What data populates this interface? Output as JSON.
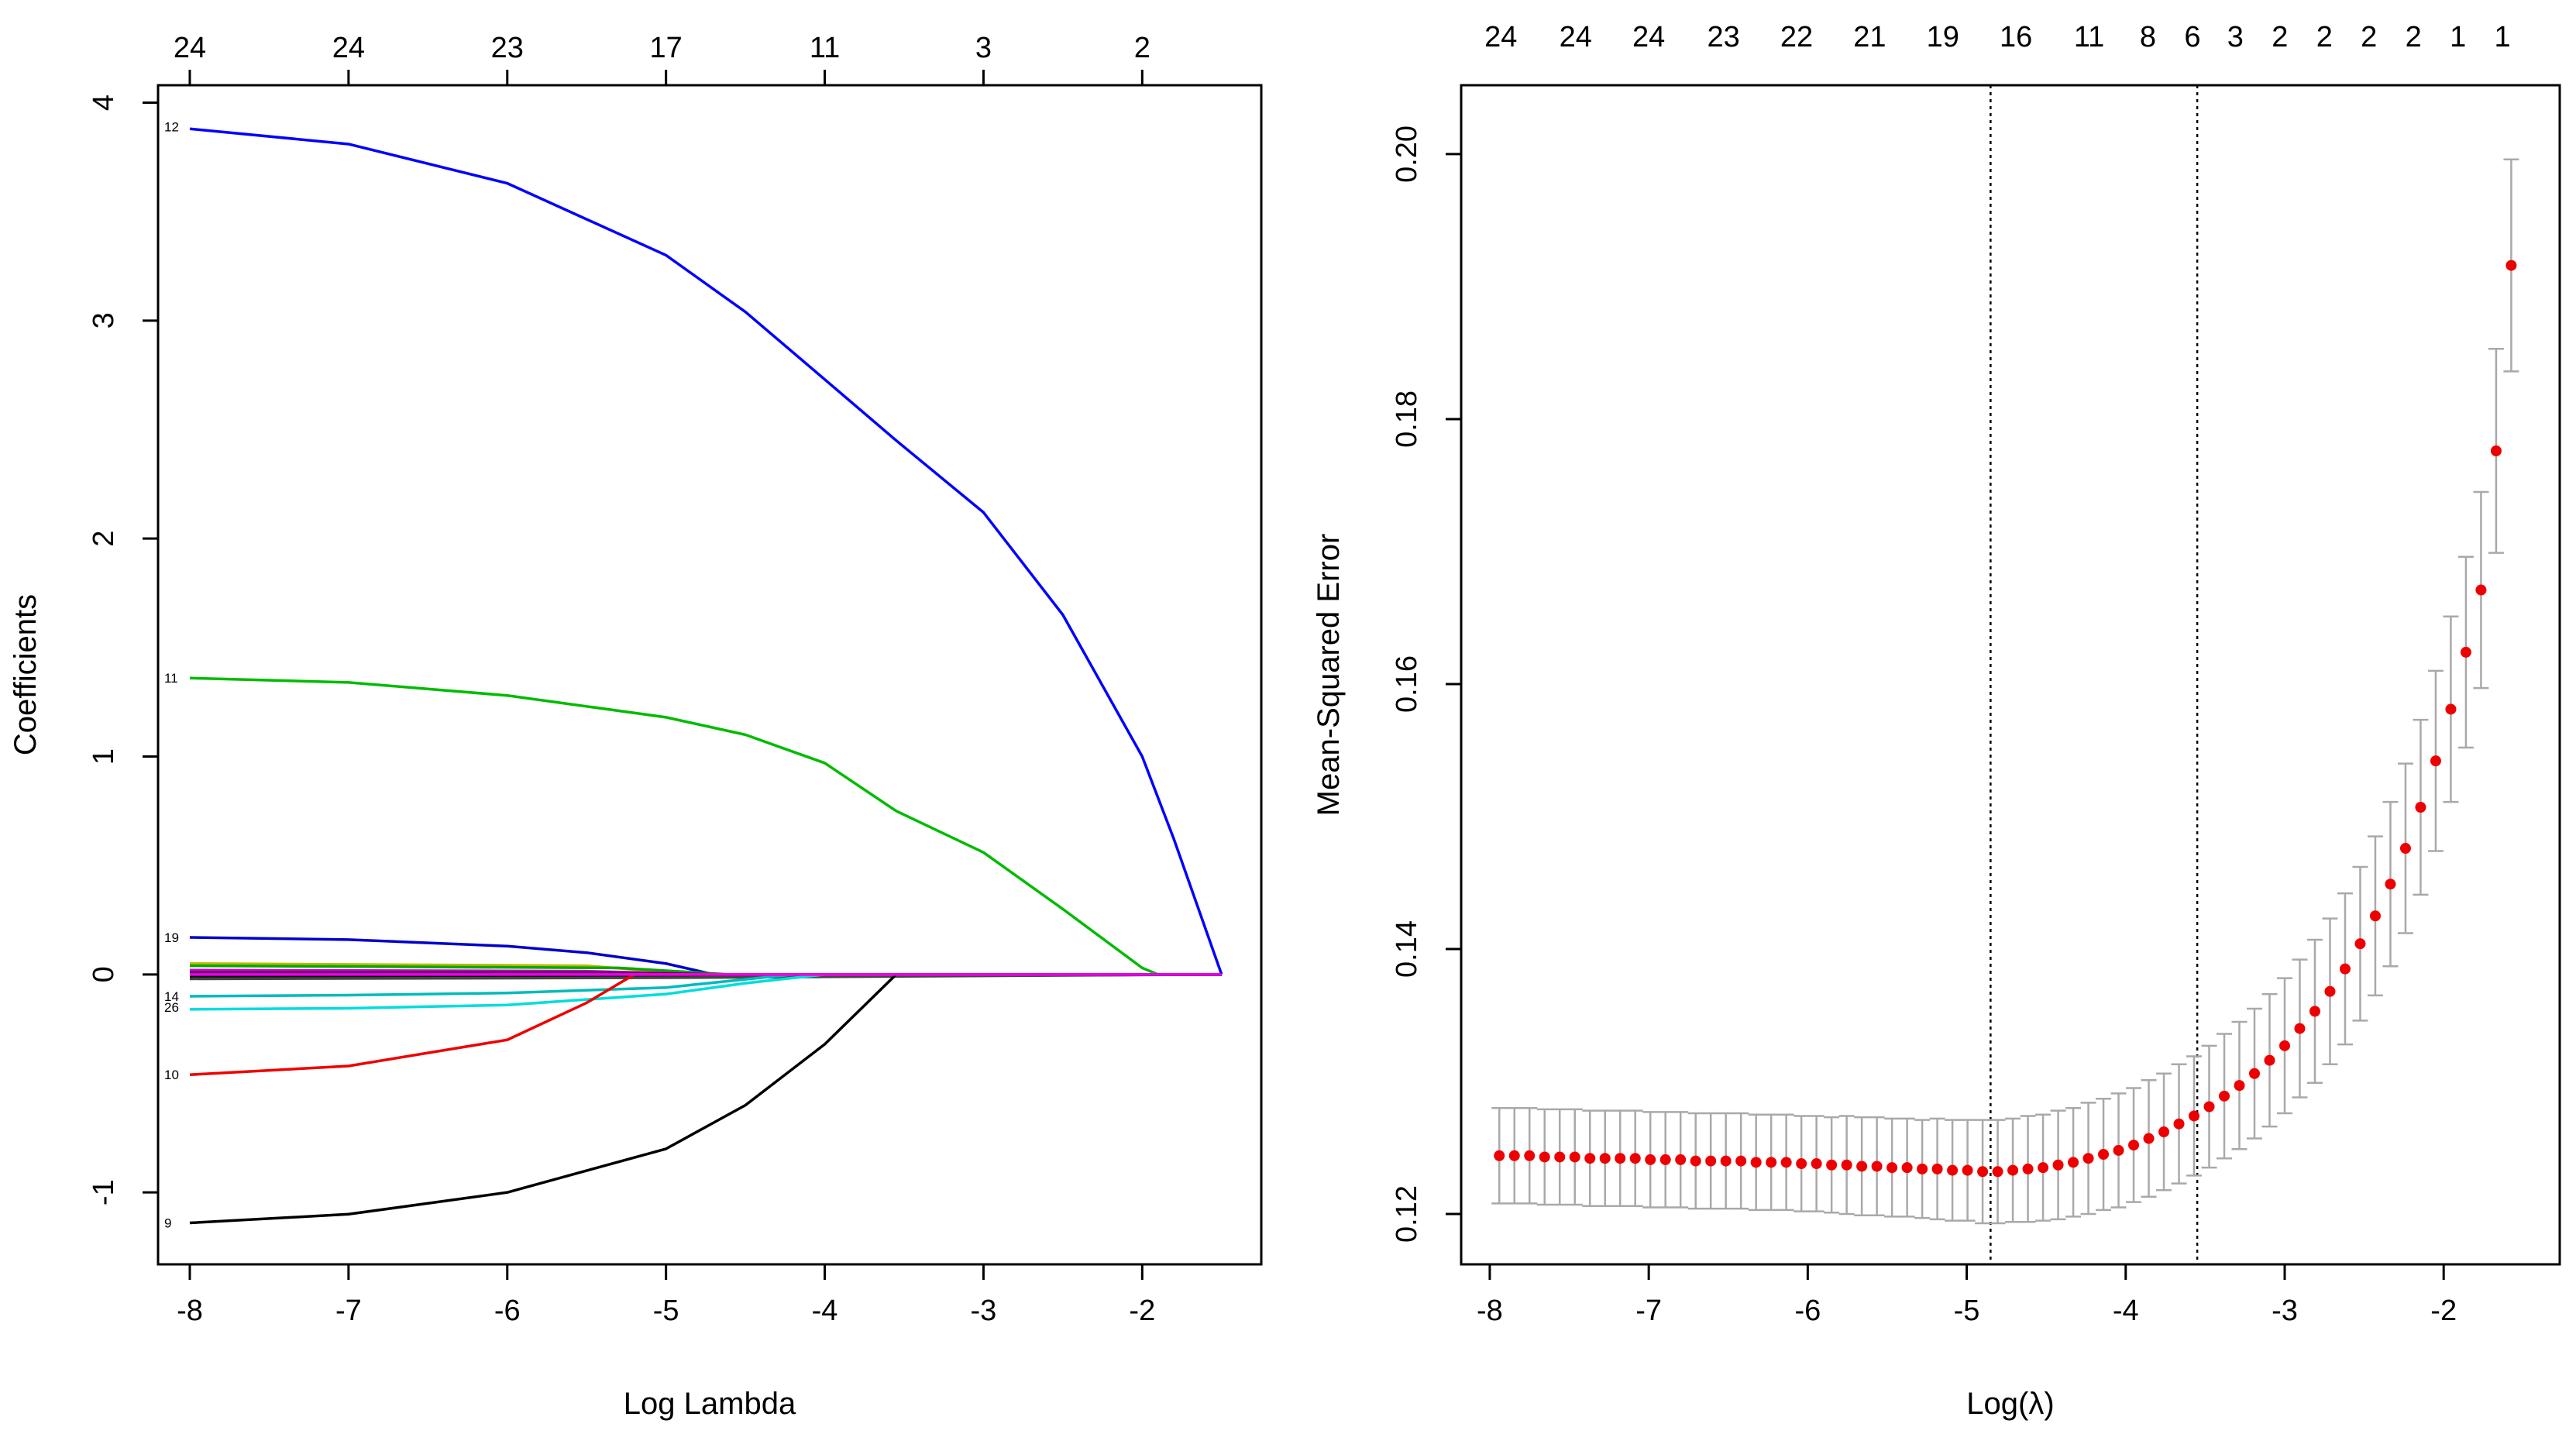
{
  "chart_data": [
    {
      "type": "line",
      "title": "",
      "xlabel": "Log Lambda",
      "ylabel": "Coefficients",
      "xlim": [
        -8.2,
        -1.25
      ],
      "ylim": [
        -1.33,
        4.08
      ],
      "x_ticks": [
        -8,
        -7,
        -6,
        -5,
        -4,
        -3,
        -2
      ],
      "y_ticks": [
        -1,
        0,
        1,
        2,
        3,
        4
      ],
      "top_axis": {
        "positions": [
          -8,
          -7,
          -6,
          -5,
          -4,
          -3,
          -2
        ],
        "labels": [
          "24",
          "24",
          "23",
          "17",
          "11",
          "3",
          "2"
        ]
      },
      "series": [
        {
          "name": "12",
          "color": "#0000ff",
          "label_y": 3.89,
          "x": [
            -8,
            -7,
            -6,
            -5,
            -4.5,
            -4,
            -3.55,
            -3,
            -2.5,
            -2,
            -1.8,
            -1.5
          ],
          "y": [
            3.88,
            3.81,
            3.63,
            3.3,
            3.04,
            2.73,
            2.45,
            2.12,
            1.65,
            1.0,
            0.62,
            0
          ]
        },
        {
          "name": "11",
          "color": "#00bb00",
          "label_y": 1.36,
          "x": [
            -8,
            -7,
            -6,
            -5,
            -4.5,
            -4,
            -3.55,
            -3,
            -2.5,
            -2,
            -1.9,
            -1.5
          ],
          "y": [
            1.36,
            1.34,
            1.28,
            1.18,
            1.1,
            0.97,
            0.75,
            0.56,
            0.3,
            0.03,
            0,
            0
          ]
        },
        {
          "name": "19",
          "color": "#0000cc",
          "label_y": 0.17,
          "x": [
            -8,
            -7,
            -6,
            -5.5,
            -5,
            -4.7,
            -1.5
          ],
          "y": [
            0.17,
            0.16,
            0.13,
            0.1,
            0.05,
            0,
            0
          ]
        },
        {
          "name": "",
          "color": "#bbbb00",
          "x": [
            -8,
            -5.5,
            -4.8,
            -1.5
          ],
          "y": [
            0.05,
            0.04,
            0,
            0
          ]
        },
        {
          "name": "",
          "color": "#00aa00",
          "x": [
            -8,
            -5.3,
            -4.6,
            -1.5
          ],
          "y": [
            0.04,
            0.03,
            0,
            0
          ]
        },
        {
          "name": "",
          "color": "#cc00cc",
          "x": [
            -8,
            -5.5,
            -4.7,
            -1.5
          ],
          "y": [
            0.02,
            0.015,
            0,
            0
          ]
        },
        {
          "name": "",
          "color": "#660066",
          "x": [
            -8,
            -5.5,
            -4.6,
            -1.5
          ],
          "y": [
            0.01,
            0.01,
            0,
            0
          ]
        },
        {
          "name": "",
          "color": "#000000",
          "x": [
            -8,
            -4.8,
            -1.5
          ],
          "y": [
            -0.01,
            -0.01,
            0
          ]
        },
        {
          "name": "",
          "color": "#444444",
          "x": [
            -8,
            -5.0,
            -1.5
          ],
          "y": [
            -0.02,
            -0.015,
            0
          ]
        },
        {
          "name": "14",
          "color": "#00bbbb",
          "label_y": -0.1,
          "x": [
            -8,
            -7,
            -6,
            -5,
            -4.2,
            -1.5
          ],
          "y": [
            -0.1,
            -0.095,
            -0.085,
            -0.06,
            0,
            0
          ]
        },
        {
          "name": "26",
          "color": "#00dddd",
          "label_y": -0.15,
          "x": [
            -8,
            -7,
            -6,
            -5,
            -4.5,
            -4.0,
            -1.5
          ],
          "y": [
            -0.16,
            -0.155,
            -0.14,
            -0.09,
            -0.04,
            0,
            0
          ]
        },
        {
          "name": "10",
          "color": "#ee0000",
          "label_y": -0.46,
          "x": [
            -8,
            -7,
            -6,
            -5.5,
            -5.2,
            -1.5
          ],
          "y": [
            -0.46,
            -0.42,
            -0.3,
            -0.13,
            0,
            0
          ]
        },
        {
          "name": "9",
          "color": "#000000",
          "label_y": -1.14,
          "x": [
            -8,
            -7,
            -6,
            -5,
            -4.5,
            -4,
            -3.55,
            -1.5
          ],
          "y": [
            -1.14,
            -1.1,
            -1.0,
            -0.8,
            -0.6,
            -0.32,
            0,
            0
          ]
        },
        {
          "name": "",
          "color": "#ee00ee",
          "x": [
            -8,
            -1.5
          ],
          "y": [
            0,
            0
          ]
        }
      ]
    },
    {
      "type": "scatter",
      "title": "",
      "xlabel": "Log(λ)",
      "ylabel": "Mean-Squared Error",
      "xlim": [
        -8.18,
        -1.27
      ],
      "ylim": [
        0.1162,
        0.2052
      ],
      "x_ticks": [
        -8,
        -7,
        -6,
        -5,
        -4,
        -3,
        -2
      ],
      "y_ticks": [
        0.12,
        0.14,
        0.16,
        0.18,
        0.2
      ],
      "top_axis": {
        "positions": [
          -7.93,
          -7.46,
          -7.0,
          -6.53,
          -6.07,
          -5.61,
          -5.15,
          -4.69,
          -4.23,
          -3.86,
          -3.58,
          -3.31,
          -3.03,
          -2.75,
          -2.47,
          -2.19,
          -1.91,
          -1.63
        ],
        "labels": [
          "24",
          "24",
          "24",
          "23",
          "22",
          "21",
          "19",
          "16",
          "11",
          "8",
          "6",
          "3",
          "2",
          "2",
          "2",
          "2",
          "1",
          "1"
        ]
      },
      "lambda_min": -4.85,
      "lambda_1se": -3.55,
      "log_lambda": [
        -7.94,
        -7.845,
        -7.75,
        -7.655,
        -7.56,
        -7.465,
        -7.37,
        -7.275,
        -7.18,
        -7.085,
        -6.99,
        -6.895,
        -6.8,
        -6.705,
        -6.61,
        -6.515,
        -6.42,
        -6.325,
        -6.23,
        -6.135,
        -6.04,
        -5.945,
        -5.85,
        -5.755,
        -5.66,
        -5.565,
        -5.47,
        -5.375,
        -5.28,
        -5.185,
        -5.09,
        -4.995,
        -4.9,
        -4.805,
        -4.71,
        -4.615,
        -4.52,
        -4.425,
        -4.33,
        -4.235,
        -4.14,
        -4.045,
        -3.95,
        -3.855,
        -3.76,
        -3.665,
        -3.57,
        -3.475,
        -3.38,
        -3.285,
        -3.19,
        -3.095,
        -3.0,
        -2.905,
        -2.81,
        -2.715,
        -2.62,
        -2.525,
        -2.43,
        -2.335,
        -2.24,
        -2.145,
        -2.05,
        -1.955,
        -1.86,
        -1.765,
        -1.67,
        -1.575
      ],
      "mse": [
        0.1244,
        0.1244,
        0.1244,
        0.1243,
        0.1243,
        0.1243,
        0.1242,
        0.1242,
        0.1242,
        0.1242,
        0.1241,
        0.1241,
        0.1241,
        0.124,
        0.124,
        0.124,
        0.124,
        0.1239,
        0.1239,
        0.1239,
        0.1238,
        0.1238,
        0.1237,
        0.1237,
        0.1236,
        0.1236,
        0.1235,
        0.1235,
        0.1234,
        0.1234,
        0.1233,
        0.1233,
        0.1232,
        0.1232,
        0.1233,
        0.1234,
        0.1235,
        0.1237,
        0.1239,
        0.1242,
        0.1245,
        0.1248,
        0.1252,
        0.1257,
        0.1262,
        0.1268,
        0.1274,
        0.1281,
        0.1289,
        0.1297,
        0.1306,
        0.1316,
        0.1327,
        0.134,
        0.1353,
        0.1368,
        0.1385,
        0.1404,
        0.1425,
        0.1449,
        0.1476,
        0.1507,
        0.1542,
        0.1581,
        0.1624,
        0.1671,
        0.1776,
        0.1916
      ],
      "se": [
        0.0036,
        0.0036,
        0.0036,
        0.0036,
        0.0036,
        0.0036,
        0.0036,
        0.0036,
        0.0036,
        0.0036,
        0.0036,
        0.0036,
        0.0036,
        0.0036,
        0.0036,
        0.0036,
        0.0036,
        0.0036,
        0.0036,
        0.0036,
        0.0036,
        0.0036,
        0.0036,
        0.0037,
        0.0037,
        0.0037,
        0.0037,
        0.0037,
        0.0037,
        0.0038,
        0.0038,
        0.0038,
        0.0039,
        0.0039,
        0.0039,
        0.004,
        0.004,
        0.0041,
        0.0041,
        0.0042,
        0.0042,
        0.0043,
        0.0043,
        0.0044,
        0.0044,
        0.0045,
        0.0045,
        0.0046,
        0.0047,
        0.0048,
        0.0049,
        0.005,
        0.0051,
        0.0052,
        0.0054,
        0.0055,
        0.0057,
        0.0058,
        0.006,
        0.0062,
        0.0064,
        0.0066,
        0.0068,
        0.007,
        0.0072,
        0.0074,
        0.0077,
        0.008
      ]
    }
  ]
}
